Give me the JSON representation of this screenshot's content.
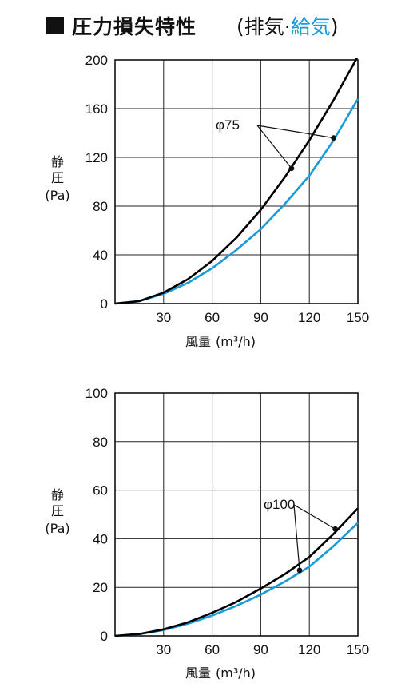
{
  "header": {
    "title": "圧力損失特性",
    "subtitle_open": "(",
    "subtitle_exhaust": "排気",
    "subtitle_sep": "·",
    "subtitle_supply": "給気",
    "subtitle_close": ")"
  },
  "colors": {
    "exhaust": "#000000",
    "supply": "#1a9ad7"
  },
  "chart_data": [
    {
      "type": "line",
      "diameter_label": "φ75",
      "xlabel_main": "風量",
      "xlabel_unit": "(m³/h)",
      "ylabel_line1": "静",
      "ylabel_line2": "圧",
      "ylabel_unit": "(Pa)",
      "xlim": [
        0,
        150
      ],
      "ylim": [
        0,
        200
      ],
      "xticks": [
        "30",
        "60",
        "90",
        "120",
        "150"
      ],
      "yticks": [
        "0",
        "40",
        "80",
        "120",
        "160",
        "200"
      ],
      "grid": true,
      "series": [
        {
          "x": [
            0,
            15,
            30,
            45,
            60,
            75,
            90,
            105,
            120,
            135,
            150
          ],
          "y": [
            0,
            2,
            9,
            20,
            35,
            54,
            77,
            104,
            134,
            167,
            203
          ],
          "color": "#000000"
        },
        {
          "x": [
            0,
            15,
            30,
            45,
            60,
            75,
            90,
            105,
            120,
            135,
            150
          ],
          "y": [
            0,
            2,
            8,
            17,
            29,
            44,
            61,
            82,
            105,
            134,
            168
          ],
          "color": "#1a9ad7"
        }
      ],
      "callout_points": [
        {
          "x": 109,
          "y": 111
        },
        {
          "x": 135,
          "y": 136
        }
      ]
    },
    {
      "type": "line",
      "diameter_label": "φ100",
      "xlabel_main": "風量",
      "xlabel_unit": "(m³/h)",
      "ylabel_line1": "静",
      "ylabel_line2": "圧",
      "ylabel_unit": "(Pa)",
      "xlim": [
        0,
        150
      ],
      "ylim": [
        0,
        100
      ],
      "xticks": [
        "30",
        "60",
        "90",
        "120",
        "150"
      ],
      "yticks": [
        "0",
        "20",
        "40",
        "60",
        "80",
        "100"
      ],
      "grid": true,
      "series": [
        {
          "x": [
            0,
            15,
            30,
            45,
            60,
            75,
            90,
            105,
            120,
            135,
            150
          ],
          "y": [
            0,
            0.8,
            2.7,
            5.6,
            9.5,
            14,
            19.5,
            25.5,
            32.5,
            42,
            52.5
          ],
          "color": "#000000"
        },
        {
          "x": [
            0,
            15,
            30,
            45,
            60,
            75,
            90,
            105,
            120,
            135,
            150
          ],
          "y": [
            0,
            0.7,
            2.4,
            5,
            8.4,
            12.4,
            17,
            22.4,
            28.5,
            37,
            46.5
          ],
          "color": "#1a9ad7"
        }
      ],
      "callout_points": [
        {
          "x": 114,
          "y": 27
        },
        {
          "x": 136,
          "y": 44
        }
      ]
    }
  ]
}
